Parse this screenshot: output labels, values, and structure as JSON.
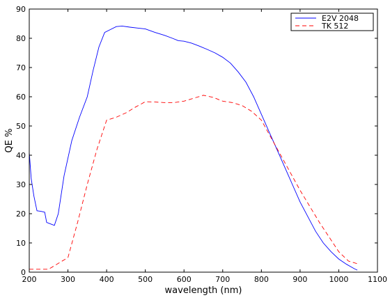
{
  "chart_data": {
    "type": "line",
    "title": "",
    "xlabel": "wavelength (nm)",
    "ylabel": "QE %",
    "xlim": [
      200,
      1100
    ],
    "ylim": [
      0,
      90
    ],
    "x_ticks": [
      "200",
      "300",
      "400",
      "500",
      "600",
      "700",
      "800",
      "900",
      "1000",
      "1100"
    ],
    "y_ticks": [
      "0",
      "10",
      "20",
      "30",
      "40",
      "50",
      "60",
      "70",
      "80",
      "90"
    ],
    "grid": false,
    "legend_position": "top-right",
    "series": [
      {
        "name": "E2V 2048",
        "color": "#0000ff",
        "style": "solid",
        "points": [
          [
            200,
            41
          ],
          [
            205,
            32
          ],
          [
            212,
            26
          ],
          [
            220,
            21
          ],
          [
            230,
            20.8
          ],
          [
            240,
            20.5
          ],
          [
            245,
            17
          ],
          [
            255,
            16.5
          ],
          [
            265,
            16
          ],
          [
            275,
            20
          ],
          [
            290,
            33
          ],
          [
            310,
            45
          ],
          [
            330,
            53
          ],
          [
            350,
            60
          ],
          [
            365,
            69
          ],
          [
            380,
            77
          ],
          [
            395,
            82
          ],
          [
            410,
            83
          ],
          [
            425,
            84
          ],
          [
            440,
            84.2
          ],
          [
            460,
            83.8
          ],
          [
            480,
            83.5
          ],
          [
            500,
            83.2
          ],
          [
            525,
            82
          ],
          [
            550,
            81
          ],
          [
            570,
            80
          ],
          [
            585,
            79.2
          ],
          [
            600,
            79
          ],
          [
            620,
            78.3
          ],
          [
            640,
            77.3
          ],
          [
            660,
            76.2
          ],
          [
            680,
            75
          ],
          [
            700,
            73.5
          ],
          [
            720,
            71.5
          ],
          [
            740,
            68.5
          ],
          [
            760,
            65
          ],
          [
            780,
            60
          ],
          [
            800,
            54
          ],
          [
            820,
            48
          ],
          [
            840,
            42
          ],
          [
            860,
            36
          ],
          [
            880,
            30
          ],
          [
            900,
            24
          ],
          [
            920,
            19
          ],
          [
            940,
            14
          ],
          [
            960,
            10
          ],
          [
            980,
            7
          ],
          [
            1000,
            4.5
          ],
          [
            1020,
            2.7
          ],
          [
            1040,
            1.2
          ],
          [
            1048,
            0.7
          ]
        ]
      },
      {
        "name": "TK 512",
        "color": "#ff0000",
        "style": "dashed",
        "points": [
          [
            200,
            1
          ],
          [
            225,
            1
          ],
          [
            250,
            1
          ],
          [
            275,
            3
          ],
          [
            300,
            5
          ],
          [
            325,
            17
          ],
          [
            350,
            30
          ],
          [
            375,
            42
          ],
          [
            400,
            52
          ],
          [
            425,
            53
          ],
          [
            450,
            54.5
          ],
          [
            475,
            56.5
          ],
          [
            500,
            58.3
          ],
          [
            525,
            58.2
          ],
          [
            550,
            58
          ],
          [
            575,
            58
          ],
          [
            600,
            58.5
          ],
          [
            625,
            59.5
          ],
          [
            650,
            60.5
          ],
          [
            675,
            59.8
          ],
          [
            700,
            58.5
          ],
          [
            725,
            58
          ],
          [
            750,
            57
          ],
          [
            775,
            55
          ],
          [
            800,
            52
          ],
          [
            825,
            46
          ],
          [
            850,
            40
          ],
          [
            875,
            34
          ],
          [
            900,
            28
          ],
          [
            925,
            22.5
          ],
          [
            950,
            17
          ],
          [
            975,
            12
          ],
          [
            1000,
            7
          ],
          [
            1025,
            3.8
          ],
          [
            1050,
            2.8
          ]
        ]
      }
    ]
  }
}
